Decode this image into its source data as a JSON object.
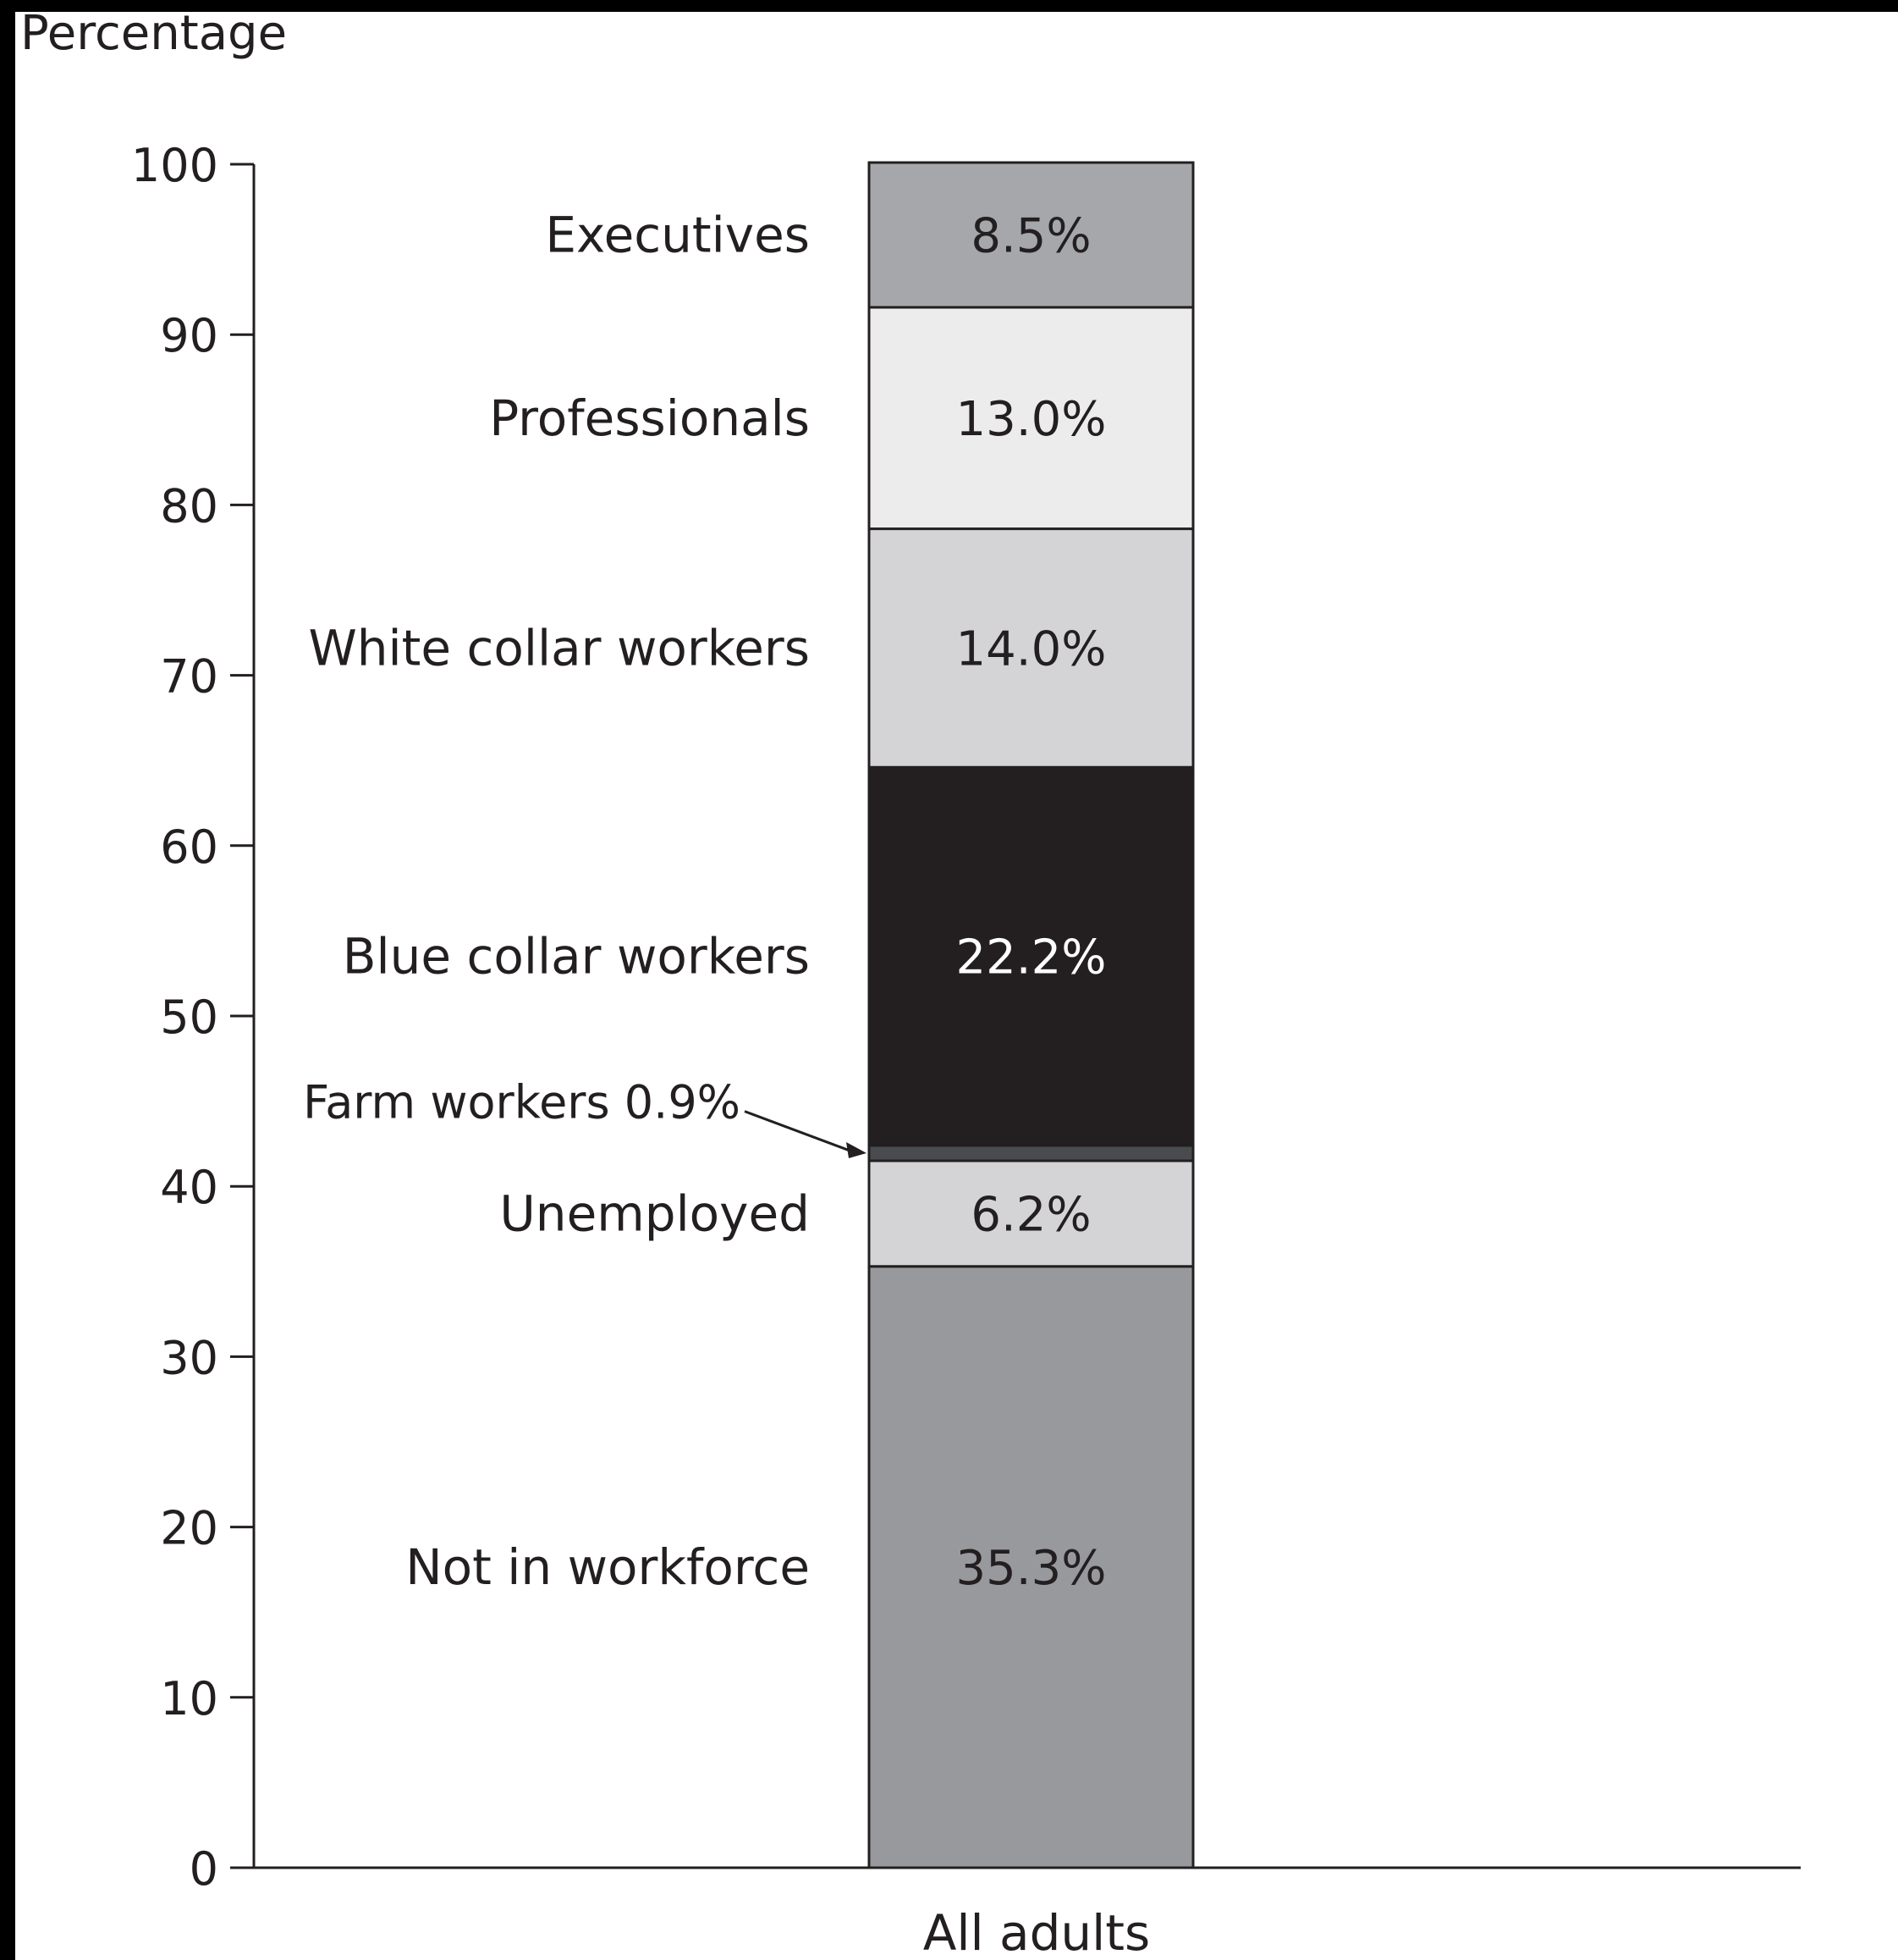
{
  "chart_data": {
    "type": "bar",
    "stacked": true,
    "ylabel": "Percentage",
    "ylim": [
      0,
      100
    ],
    "yticks": [
      0,
      10,
      20,
      30,
      40,
      50,
      60,
      70,
      80,
      90,
      100
    ],
    "categories": [
      "All adults"
    ],
    "segments": [
      {
        "name": "Not in workforce",
        "value": 35.3,
        "label": "35.3%",
        "color": "#98999d"
      },
      {
        "name": "Unemployed",
        "value": 6.2,
        "label": "6.2%",
        "color": "#d4d4d6"
      },
      {
        "name": "Farm workers",
        "value": 0.9,
        "label": "0.9%",
        "color": "#4a4b4e",
        "annotation": "Farm workers 0.9%"
      },
      {
        "name": "Blue collar workers",
        "value": 22.2,
        "label": "22.2%",
        "color": "#231f20"
      },
      {
        "name": "White collar workers",
        "value": 14.0,
        "label": "14.0%",
        "color": "#d4d4d6"
      },
      {
        "name": "Professionals",
        "value": 13.0,
        "label": "13.0%",
        "color": "#ececec"
      },
      {
        "name": "Executives",
        "value": 8.5,
        "label": "8.5%",
        "color": "#a6a7aa"
      }
    ]
  }
}
